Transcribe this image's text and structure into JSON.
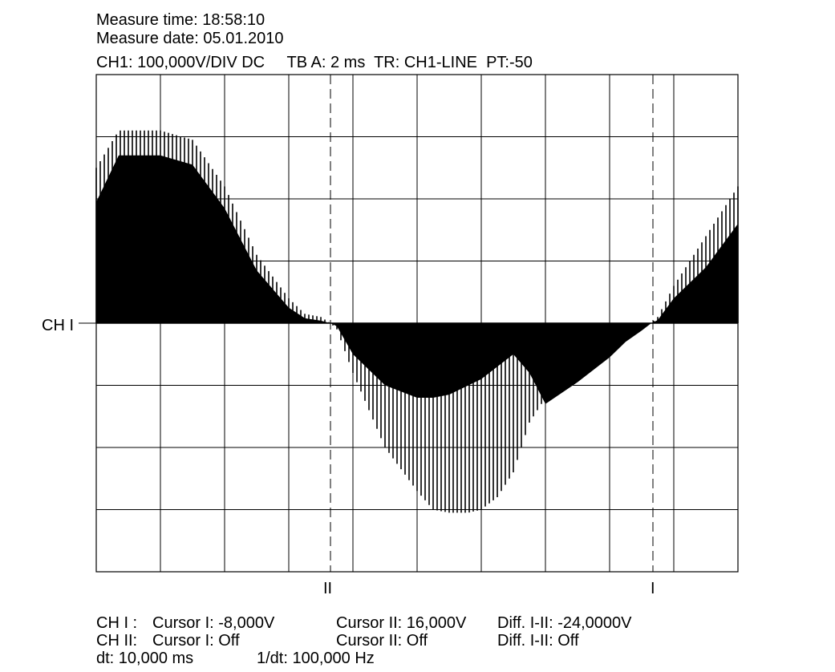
{
  "header": {
    "measure_time": "Measure time: 18:58:10",
    "measure_date": "Measure date: 05.01.2010",
    "settings": "CH1: 100,000V/DIV DC     TB A: 2 ms  TR: CH1-LINE  PT:-50"
  },
  "channel_marker": "CH I",
  "cursor_labels": {
    "cursor_2": "II",
    "cursor_1": "I"
  },
  "footer": {
    "ch1_label": "CH I :",
    "ch1_cursor1": "Cursor I: -8,000V",
    "ch1_cursor2": "Cursor II: 16,000V",
    "ch1_diff": "Diff. I-II: -24,0000V",
    "ch2_label": "CH II:",
    "ch2_cursor1": "Cursor I: Off",
    "ch2_cursor2": "Cursor II: Off",
    "ch2_diff": "Diff. I-II: Off",
    "dt": "dt: 10,000 ms",
    "inv_dt": "1/dt: 100,000 Hz"
  },
  "colors": {
    "trace": "#000000",
    "grid": "#000000",
    "background": "#ffffff"
  },
  "chart_data": {
    "type": "line",
    "x_unit": "ms",
    "y_unit": "V",
    "volts_per_div": 100,
    "time_per_div_ms": 2,
    "xlim": [
      0,
      20
    ],
    "ylim": [
      -400,
      400
    ],
    "grid": true,
    "cursors": [
      {
        "label": "II",
        "x": 7.3
      },
      {
        "label": "I",
        "x": 17.35
      }
    ],
    "series": [
      {
        "x": [
          0,
          0.7,
          2,
          3,
          4,
          5,
          6,
          6.5,
          7,
          7.3,
          7.5,
          8,
          9,
          10,
          10.5,
          11,
          11.6,
          12,
          12.5,
          13,
          13.5,
          14,
          15,
          16,
          16.5,
          17,
          17.3,
          17.5,
          18,
          19,
          20
        ],
        "y_max": [
          250,
          310,
          310,
          295,
          220,
          110,
          40,
          15,
          10,
          0,
          0,
          0,
          0,
          0,
          0,
          0,
          0,
          0,
          0,
          0,
          0,
          0,
          0,
          0,
          0,
          0,
          0,
          10,
          60,
          140,
          220
        ],
        "y_min": [
          0,
          0,
          0,
          0,
          0,
          0,
          0,
          0,
          0,
          0,
          -10,
          -80,
          -200,
          -270,
          -300,
          -305,
          -305,
          -300,
          -280,
          -240,
          -160,
          -120,
          -70,
          -30,
          -15,
          -8,
          0,
          0,
          0,
          0,
          0
        ],
        "y_envelope_upper": [
          195,
          270,
          270,
          255,
          185,
          85,
          25,
          8,
          4,
          0,
          0,
          0,
          0,
          0,
          0,
          0,
          0,
          0,
          0,
          0,
          0,
          0,
          0,
          0,
          0,
          0,
          0,
          5,
          40,
          90,
          160
        ],
        "y_envelope_lower": [
          0,
          0,
          0,
          0,
          0,
          0,
          0,
          0,
          0,
          0,
          -5,
          -50,
          -100,
          -120,
          -120,
          -115,
          -100,
          -90,
          -70,
          -50,
          -80,
          -130,
          -95,
          -55,
          -30,
          -12,
          0,
          0,
          0,
          0,
          0
        ]
      }
    ]
  }
}
